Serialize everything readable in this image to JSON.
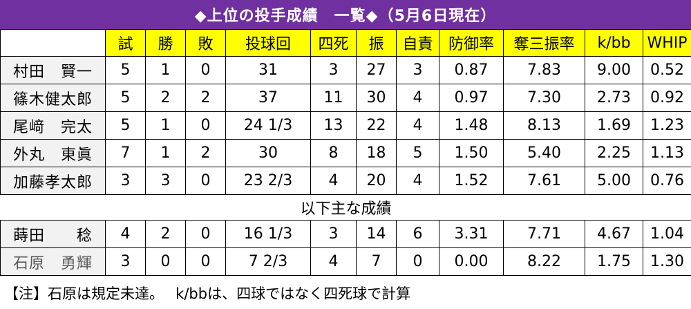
{
  "title": "◆上位の投手成績　一覧◆（5月6日現在）",
  "headers": [
    "試",
    "勝",
    "敗",
    "投球回",
    "四死",
    "振",
    "自責",
    "防御率",
    "奪三振率",
    "k/bb",
    "WHIP"
  ],
  "top_rows": [
    {
      "name": "村田　賢一",
      "cells": [
        "5",
        "1",
        "0",
        "31",
        "3",
        "27",
        "3",
        "0.87",
        "7.83",
        "9.00",
        "0.52"
      ]
    },
    {
      "name": "篠木健太郎",
      "cells": [
        "5",
        "2",
        "2",
        "37",
        "11",
        "30",
        "4",
        "0.97",
        "7.30",
        "2.73",
        "0.92"
      ]
    },
    {
      "name": "尾﨑　完太",
      "cells": [
        "5",
        "1",
        "0",
        "24 1/3",
        "13",
        "22",
        "4",
        "1.48",
        "8.13",
        "1.69",
        "1.23"
      ]
    },
    {
      "name": "外丸　東眞",
      "cells": [
        "7",
        "1",
        "2",
        "30",
        "8",
        "18",
        "5",
        "1.50",
        "5.40",
        "2.25",
        "1.13"
      ]
    },
    {
      "name": "加藤孝太郎",
      "cells": [
        "3",
        "3",
        "0",
        "23 2/3",
        "4",
        "20",
        "4",
        "1.52",
        "7.61",
        "5.00",
        "0.76"
      ]
    }
  ],
  "separator": "以下主な成績",
  "other_rows": [
    {
      "name": "蒔田　　稔",
      "cells": [
        "4",
        "2",
        "0",
        "16 1/3",
        "3",
        "14",
        "6",
        "3.31",
        "7.71",
        "4.67",
        "1.04"
      ]
    },
    {
      "name": "石原　勇輝",
      "cells": [
        "3",
        "0",
        "0",
        "7 2/3",
        "4",
        "7",
        "0",
        "0.00",
        "8.22",
        "1.75",
        "1.30"
      ]
    }
  ],
  "note": "【注】石原は規定未達。　 k/bbは、四球ではなく四死球で計算",
  "colors": {
    "title_bg": "#7030a0",
    "header_bg": "#ffff00",
    "name_bg": "#f2f2f2"
  }
}
